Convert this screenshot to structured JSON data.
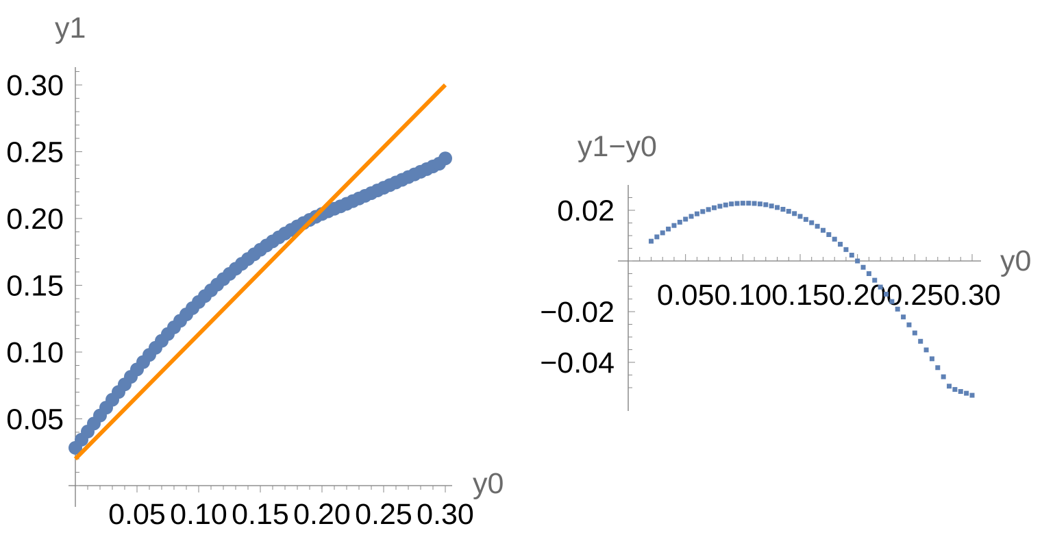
{
  "chart_data": [
    {
      "type": "scatter",
      "xlabel": "y0",
      "ylabel": "y1",
      "xlim": [
        0.0,
        0.3
      ],
      "ylim": [
        0.0,
        0.31
      ],
      "xticks": [
        {
          "value": 0.05,
          "label": "0.05"
        },
        {
          "value": 0.1,
          "label": "0.10"
        },
        {
          "value": 0.15,
          "label": "0.15"
        },
        {
          "value": 0.2,
          "label": "0.20"
        },
        {
          "value": 0.25,
          "label": "0.25"
        },
        {
          "value": 0.3,
          "label": "0.30"
        }
      ],
      "yticks": [
        {
          "value": 0.05,
          "label": "0.05"
        },
        {
          "value": 0.1,
          "label": "0.10"
        },
        {
          "value": 0.15,
          "label": "0.15"
        },
        {
          "value": 0.2,
          "label": "0.20"
        },
        {
          "value": 0.25,
          "label": "0.25"
        },
        {
          "value": 0.3,
          "label": "0.30"
        }
      ],
      "series": [
        {
          "marker": "dot",
          "color": "#5e81b5",
          "x": [
            0.0,
            0.005,
            0.01,
            0.015,
            0.02,
            0.025,
            0.03,
            0.035,
            0.04,
            0.045,
            0.05,
            0.055,
            0.06,
            0.065,
            0.07,
            0.075,
            0.08,
            0.085,
            0.09,
            0.095,
            0.1,
            0.105,
            0.11,
            0.115,
            0.12,
            0.125,
            0.13,
            0.135,
            0.14,
            0.145,
            0.15,
            0.155,
            0.16,
            0.165,
            0.17,
            0.175,
            0.18,
            0.185,
            0.19,
            0.195,
            0.2,
            0.205,
            0.21,
            0.215,
            0.22,
            0.225,
            0.23,
            0.235,
            0.24,
            0.245,
            0.25,
            0.255,
            0.26,
            0.265,
            0.27,
            0.275,
            0.28,
            0.285,
            0.29,
            0.295,
            0.3
          ],
          "y": [
            0.0283,
            0.0344,
            0.0405,
            0.0465,
            0.0525,
            0.0584,
            0.0643,
            0.0701,
            0.0758,
            0.0815,
            0.087,
            0.0925,
            0.0979,
            0.1032,
            0.1084,
            0.1135,
            0.1185,
            0.1234,
            0.1282,
            0.1329,
            0.1375,
            0.1419,
            0.1462,
            0.1505,
            0.1546,
            0.1585,
            0.1624,
            0.1661,
            0.1697,
            0.1732,
            0.1766,
            0.1798,
            0.1829,
            0.1859,
            0.1888,
            0.1915,
            0.1941,
            0.1966,
            0.199,
            0.2013,
            0.2034,
            0.2054,
            0.2073,
            0.2091,
            0.211,
            0.213,
            0.215,
            0.217,
            0.219,
            0.221,
            0.223,
            0.225,
            0.227,
            0.229,
            0.231,
            0.233,
            0.235,
            0.237,
            0.239,
            0.241,
            0.245
          ]
        },
        {
          "marker": "line",
          "color": "#ff8c00",
          "x": [
            0.0,
            0.3
          ],
          "y": [
            0.02,
            0.3
          ]
        }
      ]
    },
    {
      "type": "scatter",
      "xlabel": "y0",
      "ylabel": "y1−y0",
      "xlim": [
        0.0,
        0.3
      ],
      "ylim": [
        -0.052,
        0.025
      ],
      "xticks": [
        {
          "value": 0.05,
          "label": "0.05"
        },
        {
          "value": 0.1,
          "label": "0.10"
        },
        {
          "value": 0.15,
          "label": "0.15"
        },
        {
          "value": 0.2,
          "label": "0.20"
        },
        {
          "value": 0.25,
          "label": "0.25"
        },
        {
          "value": 0.3,
          "label": "0.30"
        }
      ],
      "yticks": [
        {
          "value": 0.02,
          "label": "0.02"
        },
        {
          "value": -0.02,
          "label": "−0.02"
        },
        {
          "value": -0.04,
          "label": "−0.04"
        }
      ],
      "series": [
        {
          "marker": "square",
          "color": "#5e81b5",
          "x": [
            0.02,
            0.025,
            0.03,
            0.035,
            0.04,
            0.045,
            0.05,
            0.055,
            0.06,
            0.065,
            0.07,
            0.075,
            0.08,
            0.085,
            0.09,
            0.095,
            0.1,
            0.105,
            0.11,
            0.115,
            0.12,
            0.125,
            0.13,
            0.135,
            0.14,
            0.145,
            0.15,
            0.155,
            0.16,
            0.165,
            0.17,
            0.175,
            0.18,
            0.185,
            0.19,
            0.195,
            0.2,
            0.205,
            0.21,
            0.215,
            0.22,
            0.225,
            0.23,
            0.235,
            0.24,
            0.245,
            0.25,
            0.255,
            0.26,
            0.265,
            0.27,
            0.275,
            0.28,
            0.285,
            0.29,
            0.295,
            0.3
          ],
          "y": [
            0.0078,
            0.0095,
            0.0111,
            0.0126,
            0.014,
            0.0153,
            0.0165,
            0.0176,
            0.0186,
            0.0195,
            0.0203,
            0.021,
            0.0216,
            0.0221,
            0.0225,
            0.0227,
            0.0228,
            0.0228,
            0.0227,
            0.0225,
            0.0222,
            0.0217,
            0.0211,
            0.0204,
            0.0196,
            0.0187,
            0.0176,
            0.0164,
            0.0151,
            0.0137,
            0.0121,
            0.0104,
            0.0086,
            0.0066,
            0.0045,
            0.0023,
            0.0,
            -0.0025,
            -0.005,
            -0.0076,
            -0.0103,
            -0.0131,
            -0.016,
            -0.019,
            -0.0221,
            -0.0252,
            -0.0284,
            -0.0317,
            -0.0351,
            -0.0386,
            -0.0421,
            -0.0457,
            -0.0494,
            -0.0507,
            -0.0515,
            -0.0522,
            -0.053
          ]
        }
      ]
    }
  ]
}
